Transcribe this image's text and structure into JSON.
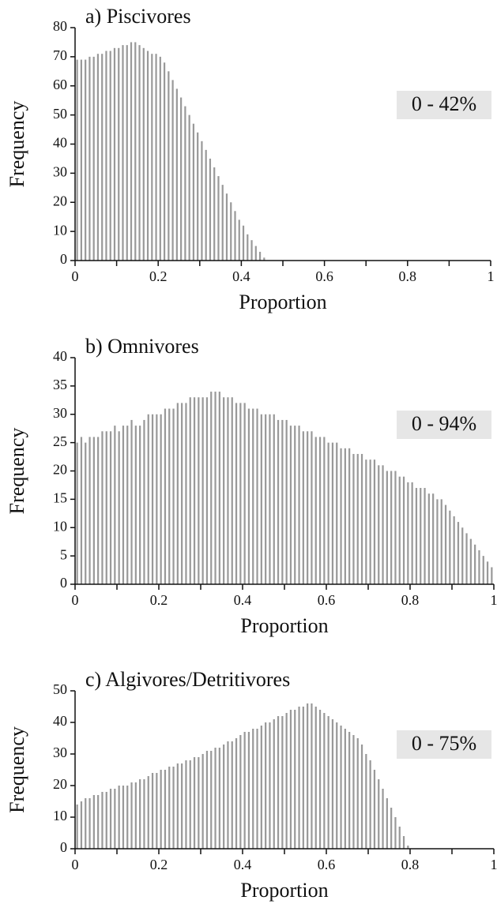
{
  "chart_data": [
    {
      "type": "histogram",
      "title": "a) Piscivores",
      "xlabel": "Proportion",
      "ylabel": "Frequency",
      "annotation": "0 - 42%",
      "color": "#999999",
      "bins": [
        0,
        0.01,
        0.02,
        0.03,
        0.04,
        0.05,
        0.06,
        0.07,
        0.08,
        0.09,
        0.1,
        0.11,
        0.12,
        0.13,
        0.14,
        0.15,
        0.16,
        0.17,
        0.18,
        0.19,
        0.2,
        0.21,
        0.22,
        0.23,
        0.24,
        0.25,
        0.26,
        0.27,
        0.28,
        0.29,
        0.3,
        0.31,
        0.32,
        0.33,
        0.34,
        0.35,
        0.36,
        0.37,
        0.38,
        0.39,
        0.4,
        0.41,
        0.42,
        0.43,
        0.44,
        0.45,
        0.46
      ],
      "values": [
        69,
        69,
        69,
        70,
        70,
        71,
        71,
        72,
        72,
        73,
        73,
        74,
        74,
        75,
        75,
        74,
        73,
        72,
        71,
        71,
        70,
        68,
        65,
        62,
        59,
        56,
        53,
        50,
        47,
        44,
        41,
        38,
        35,
        32,
        29,
        26,
        23,
        20,
        17,
        14,
        12,
        9,
        7,
        5,
        3,
        1
      ],
      "xlim": [
        0,
        1
      ],
      "xticks": [
        0,
        0.2,
        0.4,
        0.6,
        0.8,
        1
      ],
      "xminor": [
        0.1,
        0.3,
        0.5,
        0.7,
        0.9
      ],
      "ylim": [
        0,
        80
      ],
      "yticks": [
        0,
        10,
        20,
        30,
        40,
        50,
        60,
        70,
        80
      ]
    },
    {
      "type": "histogram",
      "title": "b) Omnivores",
      "xlabel": "Proportion",
      "ylabel": "Frequency",
      "annotation": "0 - 94%",
      "color": "#999999",
      "bins": [
        0,
        0.01,
        0.02,
        0.03,
        0.04,
        0.05,
        0.06,
        0.07,
        0.08,
        0.09,
        0.1,
        0.11,
        0.12,
        0.13,
        0.14,
        0.15,
        0.16,
        0.17,
        0.18,
        0.19,
        0.2,
        0.21,
        0.22,
        0.23,
        0.24,
        0.25,
        0.26,
        0.27,
        0.28,
        0.29,
        0.3,
        0.31,
        0.32,
        0.33,
        0.34,
        0.35,
        0.36,
        0.37,
        0.38,
        0.39,
        0.4,
        0.41,
        0.42,
        0.43,
        0.44,
        0.45,
        0.46,
        0.47,
        0.48,
        0.49,
        0.5,
        0.51,
        0.52,
        0.53,
        0.54,
        0.55,
        0.56,
        0.57,
        0.58,
        0.59,
        0.6,
        0.61,
        0.62,
        0.63,
        0.64,
        0.65,
        0.66,
        0.67,
        0.68,
        0.69,
        0.7,
        0.71,
        0.72,
        0.73,
        0.74,
        0.75,
        0.76,
        0.77,
        0.78,
        0.79,
        0.8,
        0.81,
        0.82,
        0.83,
        0.84,
        0.85,
        0.86,
        0.87,
        0.88,
        0.89,
        0.9,
        0.91,
        0.92,
        0.93,
        0.94,
        0.95,
        0.96,
        0.97,
        0.98,
        0.99,
        1
      ],
      "values": [
        25,
        26,
        25,
        26,
        26,
        26,
        27,
        27,
        27,
        28,
        27,
        28,
        28,
        29,
        28,
        28,
        29,
        30,
        30,
        30,
        30,
        31,
        31,
        31,
        32,
        32,
        32,
        33,
        33,
        33,
        33,
        33,
        34,
        34,
        34,
        33,
        33,
        33,
        32,
        32,
        32,
        31,
        31,
        31,
        30,
        30,
        30,
        30,
        29,
        29,
        29,
        28,
        28,
        28,
        27,
        27,
        27,
        26,
        26,
        26,
        25,
        25,
        25,
        24,
        24,
        24,
        23,
        23,
        23,
        22,
        22,
        22,
        21,
        21,
        20,
        20,
        20,
        19,
        19,
        18,
        18,
        17,
        17,
        17,
        16,
        16,
        15,
        15,
        14,
        13,
        12,
        11,
        10,
        9,
        8,
        7,
        6,
        5,
        4,
        3
      ],
      "xlim": [
        0,
        1
      ],
      "xticks": [
        0,
        0.2,
        0.4,
        0.6,
        0.8,
        1
      ],
      "xminor": [
        0.1,
        0.3,
        0.5,
        0.7,
        0.9
      ],
      "ylim": [
        0,
        40
      ],
      "yticks": [
        0,
        5,
        10,
        15,
        20,
        25,
        30,
        35,
        40
      ]
    },
    {
      "type": "histogram",
      "title": "c) Algivores/Detritivores",
      "xlabel": "Proportion",
      "ylabel": "Frequency",
      "annotation": "0 - 75%",
      "color": "#999999",
      "bins": [
        0,
        0.01,
        0.02,
        0.03,
        0.04,
        0.05,
        0.06,
        0.07,
        0.08,
        0.09,
        0.1,
        0.11,
        0.12,
        0.13,
        0.14,
        0.15,
        0.16,
        0.17,
        0.18,
        0.19,
        0.2,
        0.21,
        0.22,
        0.23,
        0.24,
        0.25,
        0.26,
        0.27,
        0.28,
        0.29,
        0.3,
        0.31,
        0.32,
        0.33,
        0.34,
        0.35,
        0.36,
        0.37,
        0.38,
        0.39,
        0.4,
        0.41,
        0.42,
        0.43,
        0.44,
        0.45,
        0.46,
        0.47,
        0.48,
        0.49,
        0.5,
        0.51,
        0.52,
        0.53,
        0.54,
        0.55,
        0.56,
        0.57,
        0.58,
        0.59,
        0.6,
        0.61,
        0.62,
        0.63,
        0.64,
        0.65,
        0.66,
        0.67,
        0.68,
        0.69,
        0.7,
        0.71,
        0.72,
        0.73,
        0.74,
        0.75,
        0.76,
        0.77,
        0.78,
        0.79,
        0.8
      ],
      "values": [
        14,
        15,
        16,
        16,
        17,
        17,
        18,
        18,
        19,
        19,
        20,
        20,
        20,
        21,
        21,
        22,
        22,
        23,
        24,
        24,
        25,
        25,
        26,
        26,
        27,
        27,
        28,
        28,
        29,
        29,
        30,
        31,
        31,
        32,
        32,
        33,
        34,
        34,
        35,
        36,
        37,
        37,
        38,
        38,
        39,
        40,
        40,
        41,
        42,
        42,
        43,
        44,
        44,
        45,
        45,
        46,
        46,
        45,
        44,
        43,
        42,
        41,
        40,
        39,
        38,
        37,
        36,
        35,
        33,
        30,
        28,
        25,
        22,
        19,
        16,
        13,
        10,
        7,
        4,
        1
      ],
      "xlim": [
        0,
        1
      ],
      "xticks": [
        0,
        0.2,
        0.4,
        0.6,
        0.8,
        1
      ],
      "xminor": [
        0.1,
        0.3,
        0.5,
        0.7,
        0.9
      ],
      "ylim": [
        0,
        50
      ],
      "yticks": [
        0,
        10,
        20,
        30,
        40,
        50
      ]
    }
  ]
}
